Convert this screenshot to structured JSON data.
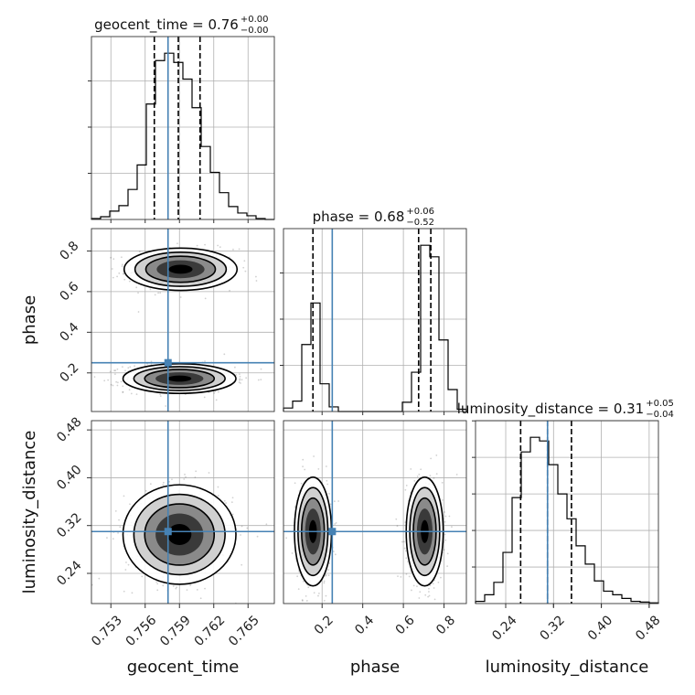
{
  "chart_data": {
    "type": "corner",
    "parameters": [
      "geocent_time",
      "phase",
      "luminosity_distance"
    ],
    "truths": {
      "geocent_time": 0.758,
      "phase": 0.25,
      "luminosity_distance": 0.31
    },
    "ranges": {
      "geocent_time": [
        0.7513,
        0.7673
      ],
      "phase": [
        0.01,
        0.91
      ],
      "luminosity_distance": [
        0.1895,
        0.4955
      ]
    },
    "ticks": {
      "geocent_time": [
        "0.753",
        "0.756",
        "0.759",
        "0.762",
        "0.765"
      ],
      "phase": [
        "0.2",
        "0.4",
        "0.6",
        "0.8"
      ],
      "luminosity_distance": [
        "0.24",
        "0.32",
        "0.40",
        "0.48"
      ]
    },
    "titles": {
      "geocent_time": {
        "label": "geocent_time",
        "median": "0.76",
        "plus": "+0.00",
        "minus": "−0.00"
      },
      "phase": {
        "label": "phase",
        "median": "0.68",
        "plus": "+0.06",
        "minus": "−0.52"
      },
      "luminosity_distance": {
        "label": "luminosity_distance",
        "median": "0.31",
        "plus": "+0.05",
        "minus": "−0.04"
      }
    },
    "quantiles": {
      "geocent_time": [
        0.7568,
        0.7589,
        0.7608
      ],
      "phase": [
        0.155,
        0.675,
        0.735
      ],
      "luminosity_distance": [
        0.265,
        0.31,
        0.35
      ]
    },
    "histograms": {
      "geocent_time": {
        "bins": [
          0.7513,
          0.7521,
          0.7529,
          0.7537,
          0.7545,
          0.7553,
          0.7561,
          0.7569,
          0.7577,
          0.7585,
          0.7593,
          0.7601,
          0.7609,
          0.7617,
          0.7625,
          0.7633,
          0.7641,
          0.7649,
          0.7657,
          0.7665,
          0.7673
        ],
        "counts": [
          2,
          6,
          18,
          30,
          65,
          118,
          250,
          344,
          360,
          340,
          304,
          242,
          158,
          102,
          58,
          28,
          14,
          8,
          2,
          0
        ]
      },
      "phase": {
        "bins": [
          0.01,
          0.055,
          0.1,
          0.145,
          0.19,
          0.235,
          0.28,
          0.325,
          0.37,
          0.415,
          0.46,
          0.505,
          0.55,
          0.595,
          0.64,
          0.685,
          0.73,
          0.775,
          0.82,
          0.865,
          0.91
        ],
        "counts": [
          15,
          45,
          290,
          470,
          120,
          20,
          0,
          0,
          0,
          0,
          0,
          0,
          0,
          40,
          170,
          720,
          670,
          310,
          95,
          10
        ]
      },
      "luminosity_distance": {
        "bins": [
          0.1895,
          0.2048,
          0.2201,
          0.2354,
          0.2507,
          0.266,
          0.2813,
          0.2966,
          0.3119,
          0.3272,
          0.3425,
          0.3578,
          0.3731,
          0.3884,
          0.4037,
          0.419,
          0.4343,
          0.4496,
          0.4649,
          0.4802,
          0.4955
        ],
        "counts": [
          6,
          24,
          58,
          140,
          290,
          415,
          455,
          445,
          380,
          300,
          232,
          158,
          108,
          62,
          34,
          24,
          14,
          6,
          4,
          2
        ]
      }
    },
    "density_2d": [
      {
        "x": "geocent_time",
        "y": "phase",
        "modes": [
          {
            "cx": 0.7591,
            "cy": 0.71,
            "sx": 0.0019,
            "sy": 0.04
          },
          {
            "cx": 0.759,
            "cy": 0.172,
            "sx": 0.0019,
            "sy": 0.028
          }
        ]
      },
      {
        "x": "geocent_time",
        "y": "luminosity_distance",
        "modes": [
          {
            "cx": 0.759,
            "cy": 0.305,
            "sx": 0.0019,
            "sy": 0.032
          }
        ]
      },
      {
        "x": "phase",
        "y": "luminosity_distance",
        "modes": [
          {
            "cx": 0.155,
            "cy": 0.31,
            "sx": 0.035,
            "sy": 0.035
          },
          {
            "cx": 0.705,
            "cy": 0.31,
            "sx": 0.035,
            "sy": 0.035
          }
        ]
      }
    ],
    "grid": true,
    "truth_color": "#4682b4",
    "line_color": "#000000"
  }
}
